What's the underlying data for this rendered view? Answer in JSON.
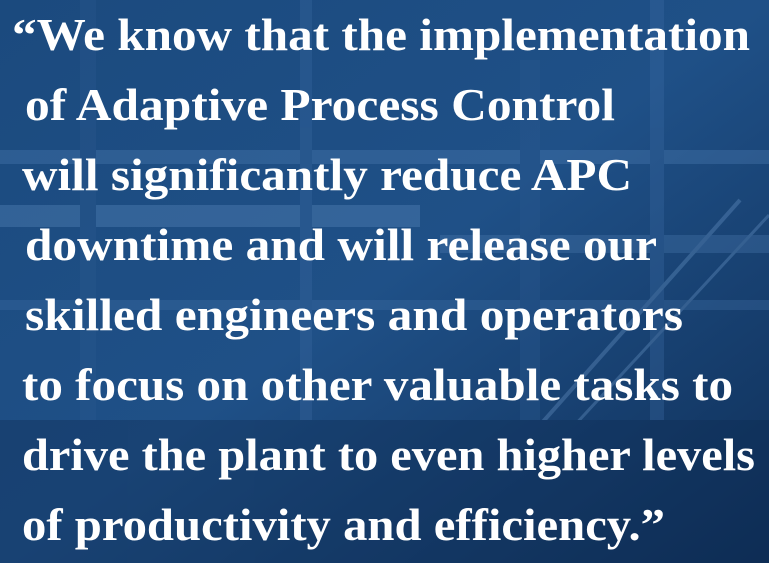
{
  "quote": {
    "lines": [
      "“We know that the implementation",
      "of Adaptive Process Control",
      "will significantly reduce APC",
      "downtime and will release our",
      "skilled engineers and operators",
      "to focus on other valuable tasks to",
      "drive the plant to even higher levels",
      "of productivity and efficiency.”"
    ]
  }
}
